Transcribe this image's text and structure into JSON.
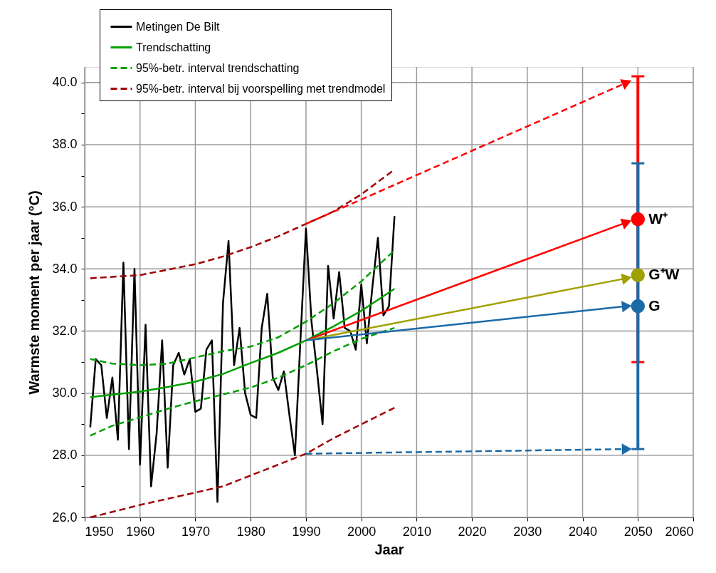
{
  "chart_data": {
    "type": "line",
    "xlabel": "Jaar",
    "ylabel": "Warmste moment per jaar  (°C)",
    "xlim": [
      1950,
      2060
    ],
    "xticks": [
      1950,
      1960,
      1970,
      1980,
      1990,
      2000,
      2010,
      2020,
      2030,
      2040,
      2050,
      2060
    ],
    "ylim": [
      26,
      40.5
    ],
    "yticks": [
      {
        "value": 26,
        "label": "26.0"
      },
      {
        "value": 27,
        "label": null
      },
      {
        "value": 28,
        "label": "28.0"
      },
      {
        "value": 29,
        "label": null
      },
      {
        "value": 30,
        "label": "30.0"
      },
      {
        "value": 31,
        "label": null
      },
      {
        "value": 32,
        "label": "32.0"
      },
      {
        "value": 33,
        "label": null
      },
      {
        "value": 34,
        "label": "34.0"
      },
      {
        "value": 35,
        "label": null
      },
      {
        "value": 36,
        "label": "36.0"
      },
      {
        "value": 37,
        "label": null
      },
      {
        "value": 38,
        "label": "38.0"
      },
      {
        "value": 39,
        "label": null
      },
      {
        "value": 40,
        "label": "40.0"
      }
    ],
    "grid": true,
    "legend": "top left",
    "series": [
      {
        "name": "Metingen De Bilt",
        "color": "#000000",
        "line_style": "solid",
        "x": [
          1951,
          1952,
          1953,
          1954,
          1955,
          1956,
          1957,
          1958,
          1959,
          1960,
          1961,
          1962,
          1963,
          1964,
          1965,
          1966,
          1967,
          1968,
          1969,
          1970,
          1971,
          1972,
          1973,
          1974,
          1975,
          1976,
          1977,
          1978,
          1979,
          1980,
          1981,
          1982,
          1983,
          1984,
          1985,
          1986,
          1987,
          1988,
          1989,
          1990,
          1991,
          1992,
          1993,
          1994,
          1995,
          1996,
          1997,
          1998,
          1999,
          2000,
          2001,
          2002,
          2003,
          2004,
          2005,
          2006
        ],
        "values": [
          28.9,
          31.1,
          30.9,
          29.2,
          30.5,
          28.5,
          34.2,
          28.2,
          34.0,
          27.7,
          32.2,
          27.0,
          28.7,
          31.7,
          27.6,
          30.9,
          31.3,
          30.6,
          31.1,
          29.4,
          29.5,
          31.4,
          31.7,
          26.5,
          32.9,
          34.9,
          30.9,
          32.1,
          30.0,
          29.3,
          29.2,
          32.1,
          33.2,
          30.5,
          30.1,
          30.7,
          29.3,
          28.0,
          31.7,
          35.3,
          32.3,
          30.7,
          29.0,
          34.1,
          32.4,
          33.9,
          32.1,
          32.0,
          31.4,
          33.5,
          31.6,
          33.4,
          35.0,
          32.5,
          32.8,
          35.7
        ]
      },
      {
        "name": "Trendschatting",
        "color": "#00a000",
        "line_style": "solid",
        "x": [
          1951,
          1955,
          1960,
          1965,
          1970,
          1975,
          1980,
          1985,
          1990,
          1995,
          2000,
          2006
        ],
        "values": [
          29.87,
          29.95,
          30.05,
          30.2,
          30.37,
          30.62,
          30.97,
          31.3,
          31.7,
          32.15,
          32.65,
          33.36
        ]
      },
      {
        "name": "95%-betr. interval trendschatting",
        "color": "#00a000",
        "line_style": "dashed",
        "x": [
          1951,
          1955,
          1960,
          1965,
          1970,
          1975,
          1980,
          1985,
          1990,
          1995,
          2000,
          2006
        ],
        "values": [
          31.1,
          30.95,
          30.9,
          30.95,
          31.15,
          31.35,
          31.5,
          31.8,
          32.3,
          32.9,
          33.6,
          34.6
        ]
      },
      {
        "color": "#00a000",
        "line_style": "dashed",
        "x": [
          1951,
          1955,
          1960,
          1965,
          1970,
          1975,
          1980,
          1985,
          1990,
          1995,
          2000,
          2006
        ],
        "values": [
          28.63,
          28.95,
          29.22,
          29.5,
          29.74,
          29.96,
          30.18,
          30.5,
          30.9,
          31.35,
          31.75,
          32.1
        ]
      },
      {
        "name": "95%-betr. interval bij voorspelling met trendmodel",
        "color": "#a00000",
        "line_style": "dashed",
        "x": [
          1951,
          1960,
          1970,
          1975,
          1980,
          1985,
          1990,
          1995,
          2000,
          2006
        ],
        "values": [
          33.7,
          33.8,
          34.15,
          34.4,
          34.7,
          35.05,
          35.45,
          35.85,
          36.4,
          37.2
        ]
      },
      {
        "color": "#a00000",
        "line_style": "dashed",
        "x": [
          1951,
          1960,
          1970,
          1975,
          1980,
          1985,
          1990,
          1995,
          2000,
          2006
        ],
        "values": [
          26.0,
          26.4,
          26.8,
          27.0,
          27.35,
          27.7,
          28.05,
          28.55,
          29.0,
          29.53
        ]
      },
      {
        "type": "line",
        "color": "#ff0000",
        "line_style": "dashed",
        "marker": "triangle",
        "x": [
          1990,
          2048
        ],
        "values": [
          35.45,
          40.0
        ]
      },
      {
        "type": "line",
        "color": "#ff0000",
        "line_style": "solid",
        "marker": "triangle",
        "x": [
          1990,
          2048
        ],
        "values": [
          31.7,
          35.5
        ]
      },
      {
        "type": "line",
        "color": "#a0a000",
        "line_style": "solid",
        "marker": "triangle",
        "x": [
          1990,
          2048
        ],
        "values": [
          31.7,
          33.7
        ]
      },
      {
        "type": "line",
        "color": "#1a6aa8",
        "line_style": "solid",
        "marker": "triangle",
        "x": [
          1990,
          2048
        ],
        "values": [
          31.7,
          32.8
        ]
      },
      {
        "type": "line",
        "color": "#1a6aa8",
        "line_style": "dashed",
        "marker": "triangle",
        "x": [
          1990,
          2048
        ],
        "values": [
          28.05,
          28.2
        ]
      },
      {
        "type": "scatter",
        "name": "W⁺",
        "color": "#ff0000",
        "marker": "circle",
        "x": [
          2050
        ],
        "values": [
          35.6
        ],
        "errors": [
          4.6
        ]
      },
      {
        "type": "scatter",
        "name": "G⁺W",
        "color": "#a0a000",
        "marker": "circle",
        "x": [
          2050
        ],
        "values": [
          33.8
        ]
      },
      {
        "type": "scatter",
        "name": "G",
        "color": "#1a6aa8",
        "marker": "circle",
        "x": [
          2050
        ],
        "values": [
          32.8
        ],
        "errors": [
          4.6
        ]
      }
    ]
  }
}
